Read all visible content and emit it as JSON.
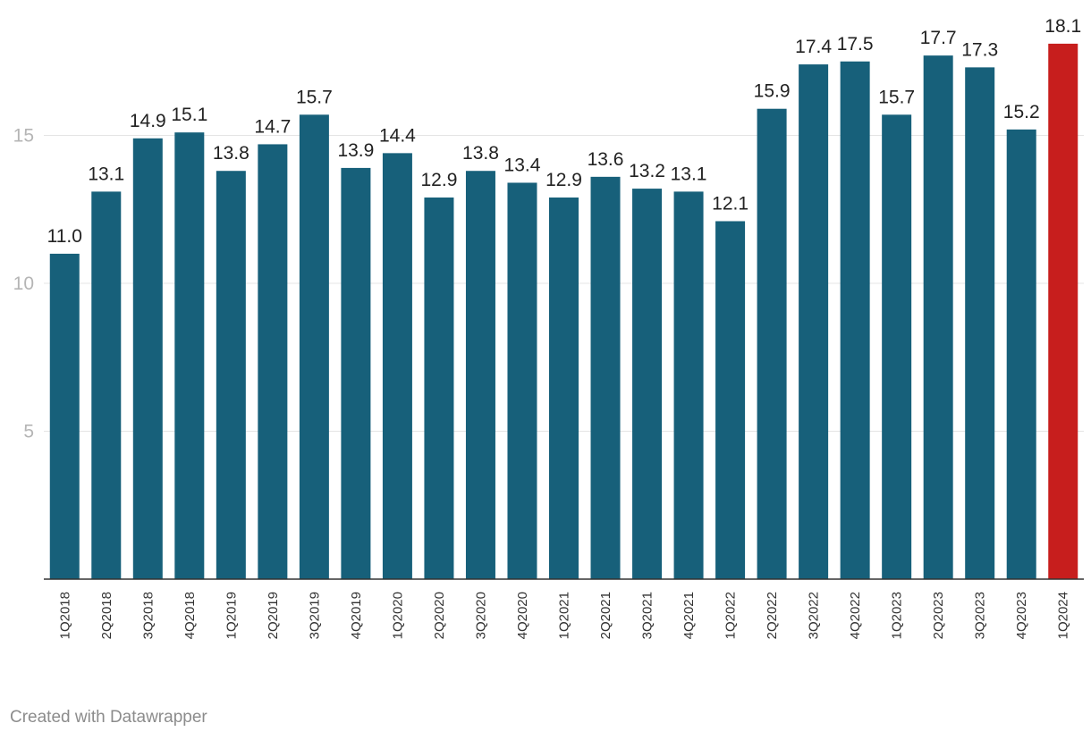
{
  "chart_data": {
    "type": "bar",
    "title": "",
    "xlabel": "",
    "ylabel": "",
    "categories": [
      "1Q2018",
      "2Q2018",
      "3Q2018",
      "4Q2018",
      "1Q2019",
      "2Q2019",
      "3Q2019",
      "4Q2019",
      "1Q2020",
      "2Q2020",
      "3Q2020",
      "4Q2020",
      "1Q2021",
      "2Q2021",
      "3Q2021",
      "4Q2021",
      "1Q2022",
      "2Q2022",
      "3Q2022",
      "4Q2022",
      "1Q2023",
      "2Q2023",
      "3Q2023",
      "4Q2023",
      "1Q2024"
    ],
    "values": [
      11.0,
      13.1,
      14.9,
      15.1,
      13.8,
      14.7,
      15.7,
      13.9,
      14.4,
      12.9,
      13.8,
      13.4,
      12.9,
      13.6,
      13.2,
      13.1,
      12.1,
      15.9,
      17.4,
      17.5,
      15.7,
      17.7,
      17.3,
      15.2,
      18.1
    ],
    "value_labels": [
      "11.0",
      "13.1",
      "14.9",
      "15.1",
      "13.8",
      "14.7",
      "15.7",
      "13.9",
      "14.4",
      "12.9",
      "13.8",
      "13.4",
      "12.9",
      "13.6",
      "13.2",
      "13.1",
      "12.1",
      "15.9",
      "17.4",
      "17.5",
      "15.7",
      "17.7",
      "17.3",
      "15.2",
      "18.1"
    ],
    "yticks": [
      5,
      10,
      15
    ],
    "ytick_labels": [
      "5",
      "10",
      "15"
    ],
    "ylim": [
      0,
      19.5
    ],
    "grid": true,
    "legend": "none",
    "colors": {
      "default": "#17607a",
      "highlight": "#c71e1d"
    },
    "highlight_index": 24
  },
  "footer": {
    "credit": "Created with Datawrapper"
  }
}
